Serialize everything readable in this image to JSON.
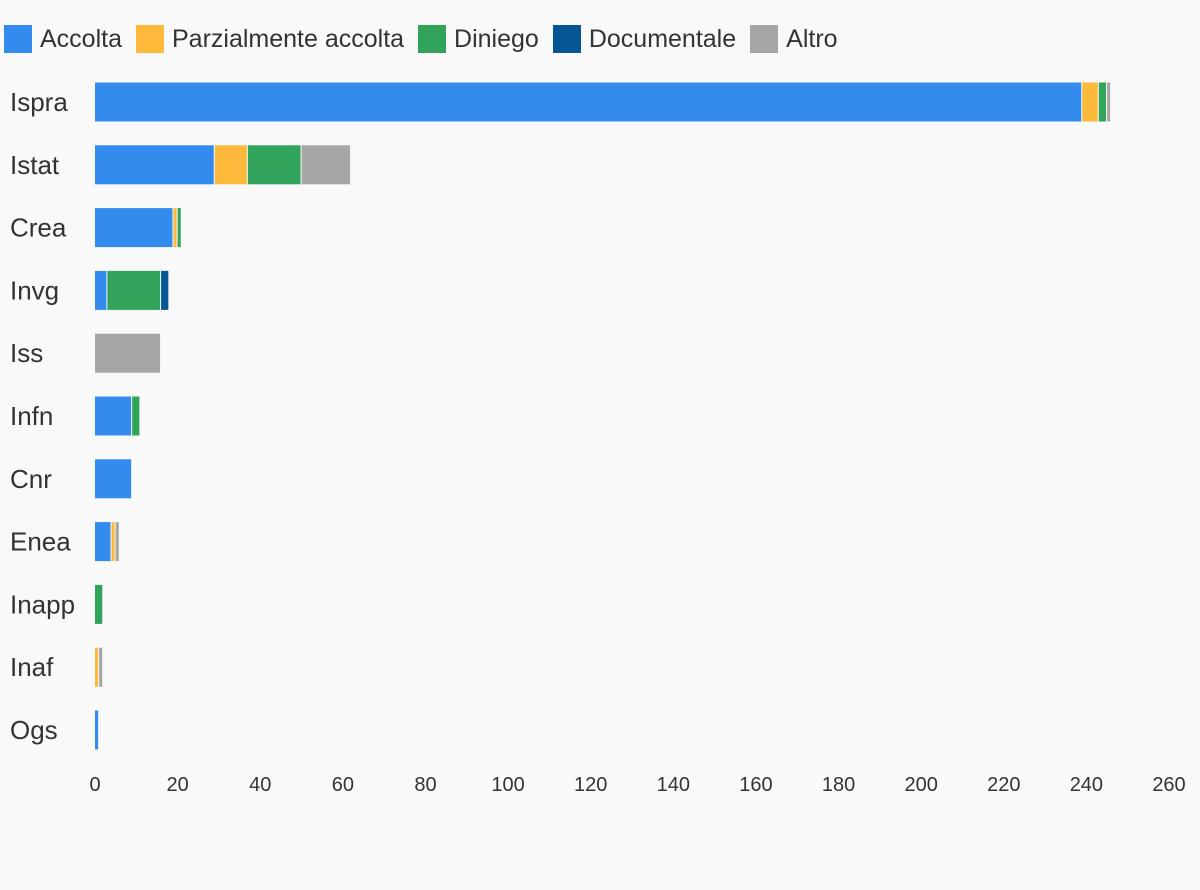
{
  "chart_data": {
    "type": "bar",
    "orientation": "horizontal",
    "stacked": true,
    "categories": [
      "Ispra",
      "Istat",
      "Crea",
      "Invg",
      "Iss",
      "Infn",
      "Cnr",
      "Enea",
      "Inapp",
      "Inaf",
      "Ogs"
    ],
    "series": [
      {
        "name": "Accolta",
        "color": "#338ced",
        "values": [
          239,
          29,
          19,
          3,
          0,
          9,
          9,
          4,
          0,
          0,
          1
        ]
      },
      {
        "name": "Parzialmente accolta",
        "color": "#fdb93a",
        "values": [
          4,
          8,
          1,
          0,
          0,
          0,
          0,
          1,
          0,
          1,
          0
        ]
      },
      {
        "name": "Diniego",
        "color": "#31a35a",
        "values": [
          2,
          13,
          1,
          13,
          0,
          2,
          0,
          0,
          2,
          0,
          0
        ]
      },
      {
        "name": "Documentale",
        "color": "#065595",
        "values": [
          0,
          0,
          0,
          2,
          0,
          0,
          0,
          0,
          0,
          0,
          0
        ]
      },
      {
        "name": "Altro",
        "color": "#a6a6a6",
        "values": [
          1,
          12,
          0,
          0,
          16,
          0,
          0,
          1,
          0,
          1,
          0
        ]
      }
    ],
    "xlim": [
      0,
      260
    ],
    "x_ticks": [
      0,
      20,
      40,
      60,
      80,
      100,
      120,
      140,
      160,
      180,
      200,
      220,
      240,
      260
    ],
    "legend_position": "top-left",
    "grid": false,
    "title": "",
    "xlabel": "",
    "ylabel": ""
  }
}
